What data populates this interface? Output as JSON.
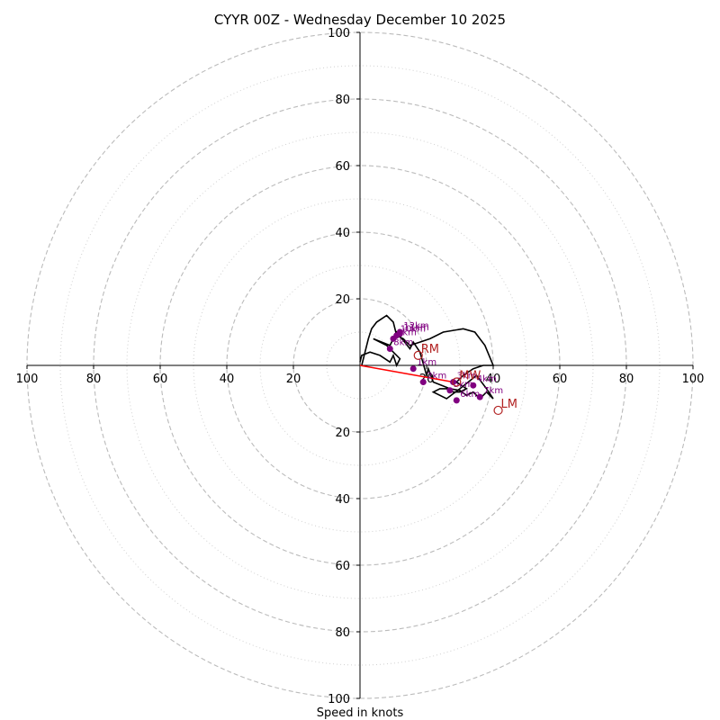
{
  "chart_data": {
    "type": "hodograph",
    "title": "CYYR 00Z - Wednesday December 10 2025",
    "xlabel": "Speed in knots",
    "ylabel": "",
    "xlim": [
      -100,
      100
    ],
    "ylim": [
      -100,
      100
    ],
    "ring_major": [
      20,
      40,
      60,
      80,
      100
    ],
    "ring_minor": [
      10,
      30,
      50,
      70,
      90
    ],
    "x_ticks": [
      {
        "value": -100,
        "label": "100"
      },
      {
        "value": -80,
        "label": "80"
      },
      {
        "value": -60,
        "label": "60"
      },
      {
        "value": -40,
        "label": "40"
      },
      {
        "value": -20,
        "label": "20"
      },
      {
        "value": 20,
        "label": "20"
      },
      {
        "value": 40,
        "label": "40"
      },
      {
        "value": 60,
        "label": "60"
      },
      {
        "value": 80,
        "label": "80"
      },
      {
        "value": 100,
        "label": "100"
      }
    ],
    "y_ticks": [
      {
        "value": 100,
        "label": "100"
      },
      {
        "value": 80,
        "label": "80"
      },
      {
        "value": 60,
        "label": "60"
      },
      {
        "value": 40,
        "label": "40"
      },
      {
        "value": 20,
        "label": "20"
      },
      {
        "value": -20,
        "label": "20"
      },
      {
        "value": -40,
        "label": "40"
      },
      {
        "value": -60,
        "label": "60"
      },
      {
        "value": -80,
        "label": "80"
      },
      {
        "value": -100,
        "label": "100"
      }
    ],
    "hodograph_line": {
      "color": "#000000",
      "u": [
        0,
        0.5,
        3,
        6,
        9,
        10,
        11,
        12,
        8,
        4,
        9,
        11,
        15,
        16,
        18,
        20,
        20.5,
        22,
        27,
        30,
        32,
        34,
        36,
        38,
        40,
        38,
        35,
        30,
        26,
        22,
        24,
        26,
        28,
        30,
        32,
        29,
        31,
        34,
        37,
        40,
        37.5,
        34.5,
        31,
        25,
        21,
        18,
        15,
        13,
        11,
        10,
        8,
        5,
        3.5,
        2.5,
        1.5,
        0.5
      ],
      "v": [
        1,
        3,
        4,
        3,
        1,
        3,
        0,
        2,
        6,
        8,
        6,
        10,
        5,
        7,
        4,
        -3,
        -1,
        -5,
        -7,
        -7.5,
        -9,
        -8,
        -10,
        -8,
        -10,
        -7,
        -3,
        -7,
        -10,
        -8,
        -7,
        -7,
        -8,
        -8,
        -7,
        -5,
        -3,
        -1,
        0,
        0,
        6,
        10,
        11,
        10,
        8,
        7,
        6,
        8,
        9,
        13,
        15,
        13,
        11,
        8,
        4,
        0
      ]
    },
    "height_markers": {
      "color": "#800080",
      "points": [
        {
          "u": 16,
          "v": -1,
          "label": "1km"
        },
        {
          "u": 19,
          "v": -5,
          "label": "2km"
        },
        {
          "u": 28,
          "v": -5,
          "label": "3km"
        },
        {
          "u": 34,
          "v": -6,
          "label": "4km"
        },
        {
          "u": 27,
          "v": -7.5,
          "label": "5km"
        },
        {
          "u": 29,
          "v": -10.5,
          "label": "6km"
        },
        {
          "u": 36,
          "v": -9.5,
          "label": "7km"
        },
        {
          "u": 9,
          "v": 5,
          "label": "8km"
        },
        {
          "u": 10,
          "v": 8,
          "label": "9km"
        },
        {
          "u": 11,
          "v": 9,
          "label": "10km"
        },
        {
          "u": 12,
          "v": 9.5,
          "label": "11km"
        },
        {
          "u": 12,
          "v": 10,
          "label": "12km"
        }
      ]
    },
    "mean_wind_line": {
      "u": [
        0,
        28
      ],
      "v": [
        0,
        -5
      ],
      "color": "#ff0000"
    },
    "storm_motion": [
      {
        "label": "RM",
        "u": 17.5,
        "v": 3,
        "color": "#b22222"
      },
      {
        "label": "LM",
        "u": 41.5,
        "v": -13.5,
        "color": "#b22222"
      },
      {
        "label": "MW",
        "u": 29,
        "v": -5,
        "color": "#b22222"
      }
    ],
    "grid_color": "#bbbbbb"
  }
}
